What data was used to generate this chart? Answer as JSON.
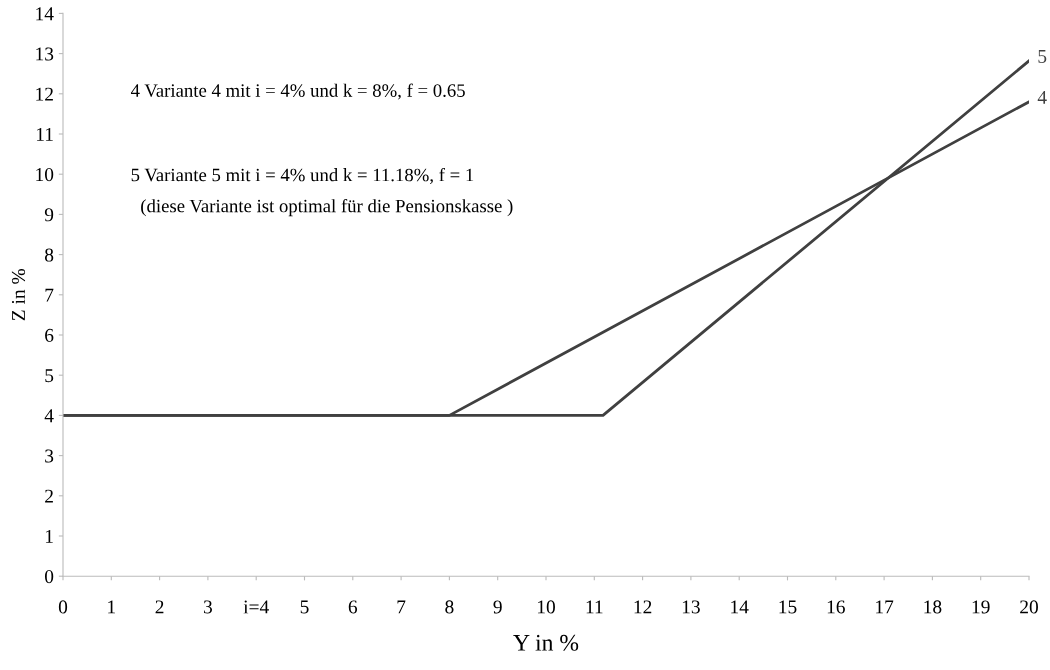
{
  "chart_data": {
    "type": "line",
    "xlabel": "Y in %",
    "ylabel": "Z in %",
    "xlim": [
      0,
      20
    ],
    "ylim": [
      0,
      14
    ],
    "xticks": [
      0,
      1,
      2,
      3,
      {
        "value": 4,
        "label": "i=4"
      },
      5,
      6,
      7,
      8,
      9,
      10,
      11,
      12,
      13,
      14,
      15,
      16,
      17,
      18,
      19,
      20
    ],
    "yticks": [
      0,
      1,
      2,
      3,
      4,
      5,
      6,
      7,
      8,
      9,
      10,
      11,
      12,
      13,
      14
    ],
    "grid": false,
    "legend": false,
    "marker": "none",
    "line_style": "solid",
    "series": [
      {
        "name": "5",
        "color": "#404040",
        "x": [
          0,
          11.18,
          20
        ],
        "values": [
          4,
          4,
          12.82
        ]
      },
      {
        "name": "4",
        "color": "#404040",
        "x": [
          0,
          8,
          20
        ],
        "values": [
          4,
          4,
          11.8
        ]
      }
    ],
    "annotations": [
      "4 Variante 4 mit i = 4% und k = 8%, f = 0.65",
      "5 Variante 5 mit i = 4% und k = 11.18%, f = 1",
      "(diese Variante ist optimal für die Pensionskasse )"
    ]
  }
}
